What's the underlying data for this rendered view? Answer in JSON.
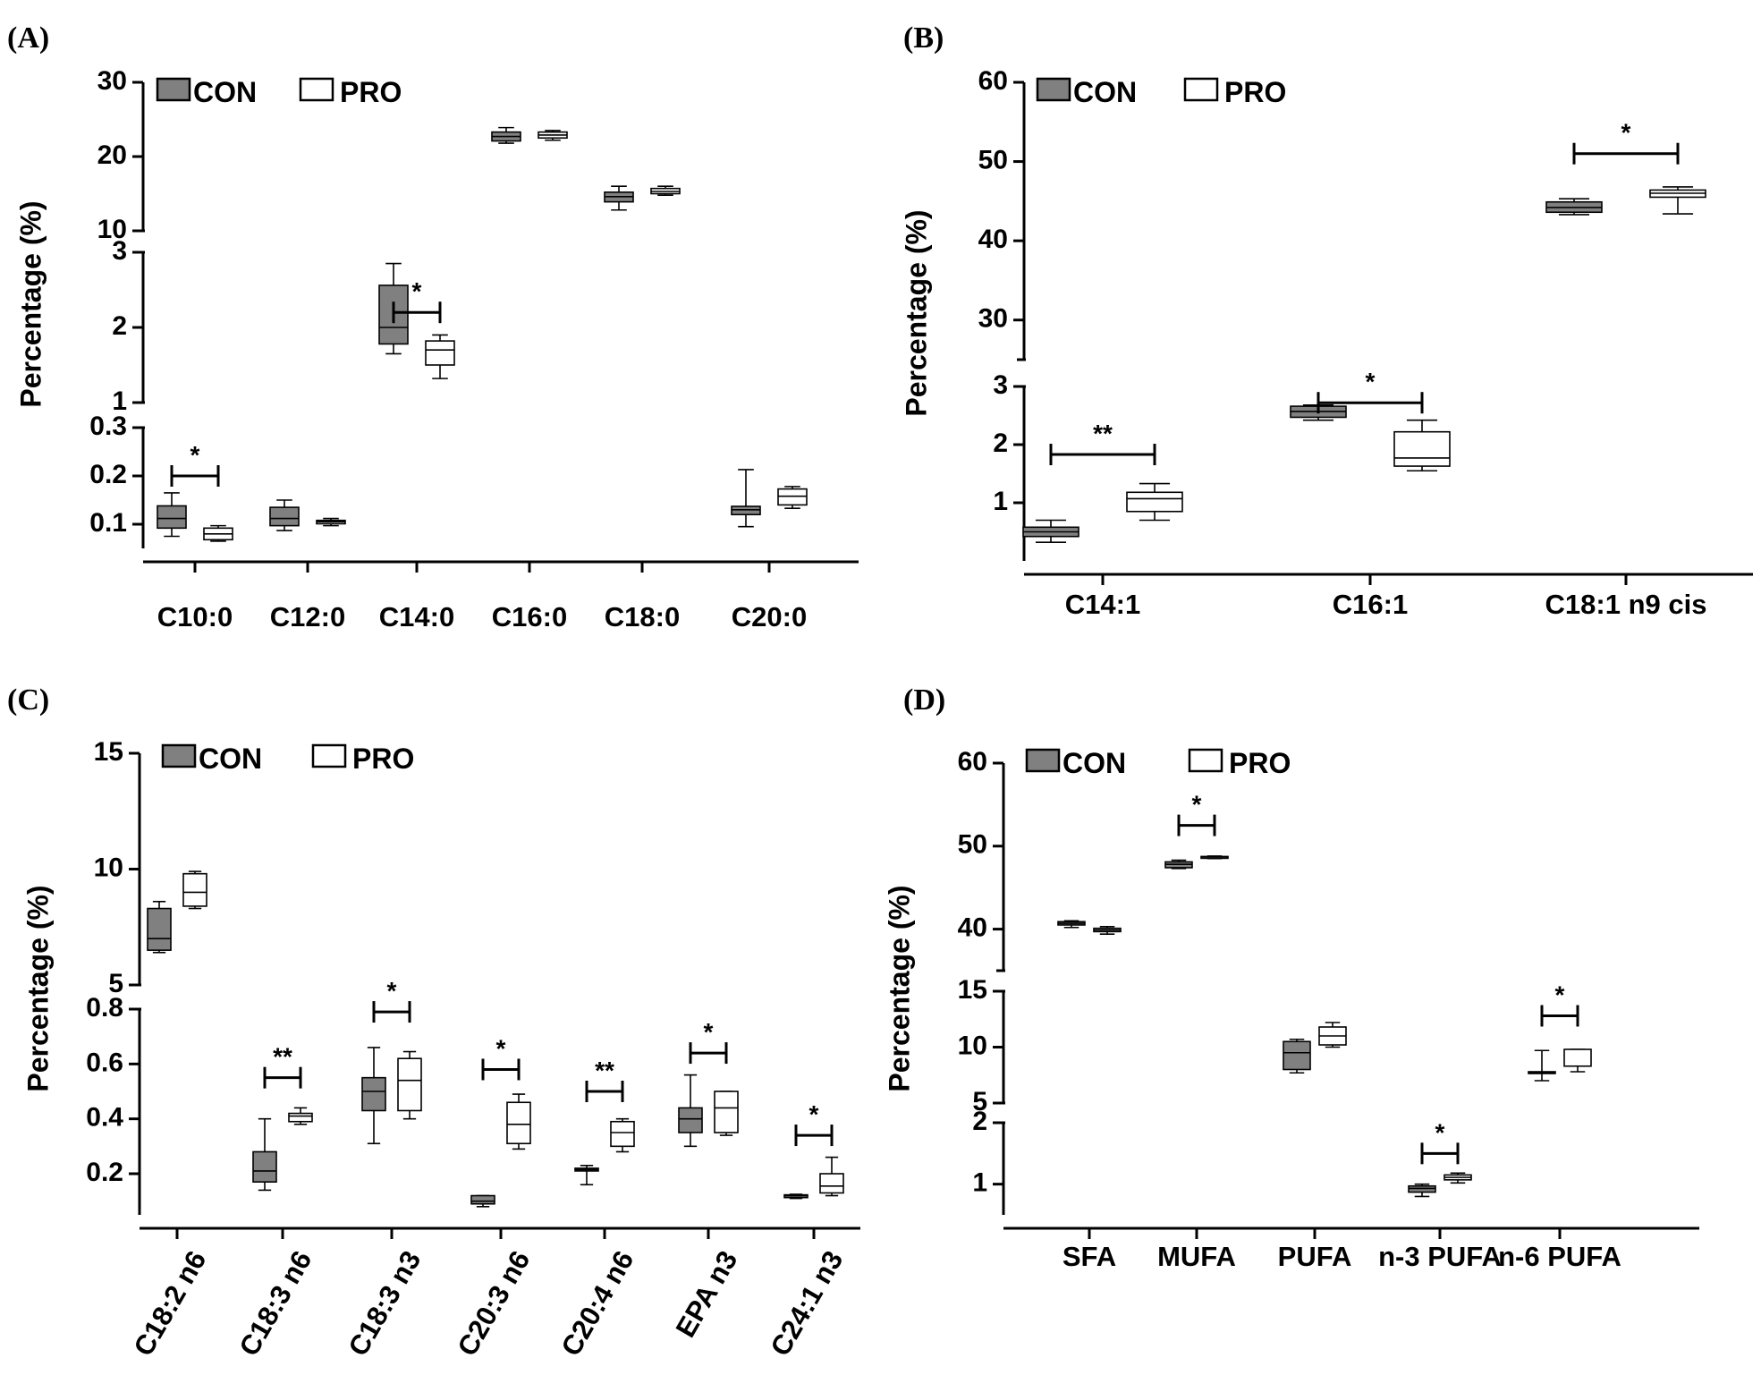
{
  "legend": {
    "con": "CON",
    "pro": "PRO"
  },
  "colors": {
    "con_fill": "#808080",
    "pro_fill": "#ffffff",
    "stroke": "#000000"
  },
  "chart_data": [
    {
      "panel": "(A)",
      "type": "box",
      "ylabel": "Percentage (%)",
      "legend_position": "top-left",
      "categories": [
        "C10:0",
        "C12:0",
        "C14:0",
        "C16:0",
        "C18:0",
        "C20:0"
      ],
      "segments": [
        {
          "range": [
            0.05,
            0.3
          ],
          "ticks": [
            "0.1",
            "0.2",
            "0.3"
          ]
        },
        {
          "range": [
            1,
            3
          ],
          "ticks": [
            "1",
            "2",
            "3"
          ]
        },
        {
          "range": [
            10,
            30
          ],
          "ticks": [
            "10",
            "20",
            "30"
          ]
        }
      ],
      "series": [
        {
          "name": "CON",
          "boxes": [
            [
              0.075,
              0.092,
              0.112,
              0.138,
              0.165
            ],
            [
              0.087,
              0.097,
              0.112,
              0.135,
              0.15
            ],
            [
              1.65,
              1.78,
              2.0,
              2.56,
              2.85
            ],
            [
              21.8,
              22.1,
              22.7,
              23.3,
              23.9
            ],
            [
              12.8,
              13.9,
              14.6,
              15.2,
              16.0
            ],
            [
              0.095,
              0.12,
              0.13,
              0.137,
              0.213
            ]
          ]
        },
        {
          "name": "PRO",
          "boxes": [
            [
              0.065,
              0.068,
              0.08,
              0.092,
              0.097
            ],
            [
              0.097,
              0.101,
              0.105,
              0.108,
              0.112
            ],
            [
              1.32,
              1.5,
              1.7,
              1.82,
              1.9
            ],
            [
              22.2,
              22.5,
              22.9,
              23.3,
              23.5
            ],
            [
              14.8,
              15.0,
              15.3,
              15.7,
              16.0
            ],
            [
              0.133,
              0.14,
              0.158,
              0.173,
              0.178
            ]
          ]
        }
      ],
      "significance": [
        {
          "category": "C10:0",
          "label": "*",
          "value": 0.2
        },
        {
          "category": "C14:0",
          "label": "*",
          "value": 2.2
        }
      ]
    },
    {
      "panel": "(B)",
      "type": "box",
      "ylabel": "Percentage (%)",
      "legend_position": "top-left",
      "categories": [
        "C14:1",
        "C16:1",
        "C18:1 n9 cis"
      ],
      "segments": [
        {
          "range": [
            0,
            3
          ],
          "ticks": [
            "1",
            "2",
            "3"
          ]
        },
        {
          "range": [
            25,
            60
          ],
          "ticks": [
            "30",
            "40",
            "50",
            "60"
          ]
        }
      ],
      "series": [
        {
          "name": "CON",
          "boxes": [
            [
              0.32,
              0.42,
              0.5,
              0.58,
              0.7
            ],
            [
              2.42,
              2.47,
              2.57,
              2.66,
              2.68
            ],
            [
              43.3,
              43.6,
              44.2,
              44.9,
              45.3
            ]
          ]
        },
        {
          "name": "PRO",
          "boxes": [
            [
              0.7,
              0.85,
              1.07,
              1.18,
              1.33
            ],
            [
              1.55,
              1.63,
              1.77,
              2.22,
              2.42
            ],
            [
              43.4,
              45.5,
              46.0,
              46.4,
              46.8
            ]
          ]
        }
      ],
      "significance": [
        {
          "category": "C14:1",
          "label": "**",
          "value": 1.83
        },
        {
          "category": "C16:1",
          "label": "*",
          "value": 2.72
        },
        {
          "category": "C18:1 n9 cis",
          "label": "*",
          "value": 51.0
        }
      ]
    },
    {
      "panel": "(C)",
      "type": "box",
      "ylabel": "Percentage (%)",
      "legend_position": "top-left",
      "categories": [
        "C18:2 n6",
        "C18:3 n6",
        "C18:3 n3",
        "C20:3 n6",
        "C20:4 n6",
        "EPA n3",
        "C24:1 n3"
      ],
      "segments": [
        {
          "range": [
            0.05,
            0.8
          ],
          "ticks": [
            "0.2",
            "0.4",
            "0.6",
            "0.8"
          ]
        },
        {
          "range": [
            5,
            15
          ],
          "ticks": [
            "5",
            "10",
            "15"
          ]
        }
      ],
      "series": [
        {
          "name": "CON",
          "boxes": [
            [
              6.4,
              6.5,
              7.0,
              8.3,
              8.6
            ],
            [
              0.14,
              0.17,
              0.21,
              0.28,
              0.4
            ],
            [
              0.31,
              0.43,
              0.5,
              0.55,
              0.66
            ],
            [
              0.08,
              0.09,
              0.1,
              0.12,
              0.12
            ],
            [
              0.16,
              0.21,
              0.215,
              0.22,
              0.23
            ],
            [
              0.3,
              0.35,
              0.4,
              0.44,
              0.56
            ],
            [
              0.11,
              0.113,
              0.12,
              0.123,
              0.125
            ]
          ]
        },
        {
          "name": "PRO",
          "boxes": [
            [
              8.3,
              8.4,
              9.0,
              9.8,
              9.9
            ],
            [
              0.38,
              0.39,
              0.41,
              0.42,
              0.44
            ],
            [
              0.4,
              0.43,
              0.54,
              0.62,
              0.645
            ],
            [
              0.29,
              0.31,
              0.38,
              0.46,
              0.49
            ],
            [
              0.28,
              0.3,
              0.35,
              0.39,
              0.4
            ],
            [
              0.34,
              0.35,
              0.44,
              0.5,
              0.5
            ],
            [
              0.12,
              0.13,
              0.155,
              0.2,
              0.26
            ]
          ]
        }
      ],
      "significance": [
        {
          "category": "C18:3 n6",
          "label": "**",
          "value": 0.55
        },
        {
          "category": "C18:3 n3",
          "label": "*",
          "value": 0.79
        },
        {
          "category": "C20:3 n6",
          "label": "*",
          "value": 0.58
        },
        {
          "category": "C20:4 n6",
          "label": "**",
          "value": 0.5
        },
        {
          "category": "EPA n3",
          "label": "*",
          "value": 0.64
        },
        {
          "category": "C24:1 n3",
          "label": "*",
          "value": 0.34
        }
      ]
    },
    {
      "panel": "(D)",
      "type": "box",
      "ylabel": "Percentage (%)",
      "legend_position": "top-left",
      "categories": [
        "SFA",
        "MUFA",
        "PUFA",
        "n-3 PUFA",
        "n-6 PUFA"
      ],
      "segments": [
        {
          "range": [
            0.5,
            2
          ],
          "ticks": [
            "1",
            "2"
          ]
        },
        {
          "range": [
            5,
            15
          ],
          "ticks": [
            "5",
            "10",
            "15"
          ]
        },
        {
          "range": [
            35,
            60
          ],
          "ticks": [
            "40",
            "50",
            "60"
          ]
        }
      ],
      "series": [
        {
          "name": "CON",
          "boxes": [
            [
              40.2,
              40.5,
              40.7,
              40.9,
              41.0
            ],
            [
              47.3,
              47.4,
              47.8,
              48.1,
              48.3
            ],
            [
              7.7,
              8.0,
              9.5,
              10.5,
              10.7
            ],
            [
              0.8,
              0.87,
              0.93,
              0.97,
              1.0
            ],
            [
              7.0,
              7.7,
              7.7,
              7.8,
              9.7
            ]
          ]
        },
        {
          "name": "PRO",
          "boxes": [
            [
              39.4,
              39.7,
              39.9,
              40.1,
              40.3
            ],
            [
              48.5,
              48.55,
              48.7,
              48.75,
              48.8
            ],
            [
              10.0,
              10.2,
              11.0,
              11.8,
              12.2
            ],
            [
              1.02,
              1.07,
              1.11,
              1.15,
              1.18
            ],
            [
              7.8,
              8.3,
              8.3,
              9.8,
              9.8
            ]
          ]
        }
      ],
      "significance": [
        {
          "category": "MUFA",
          "label": "*",
          "value": 52.5
        },
        {
          "category": "n-3 PUFA",
          "label": "*",
          "value": 1.5
        },
        {
          "category": "n-6 PUFA",
          "label": "*",
          "value": 12.8
        }
      ]
    }
  ]
}
